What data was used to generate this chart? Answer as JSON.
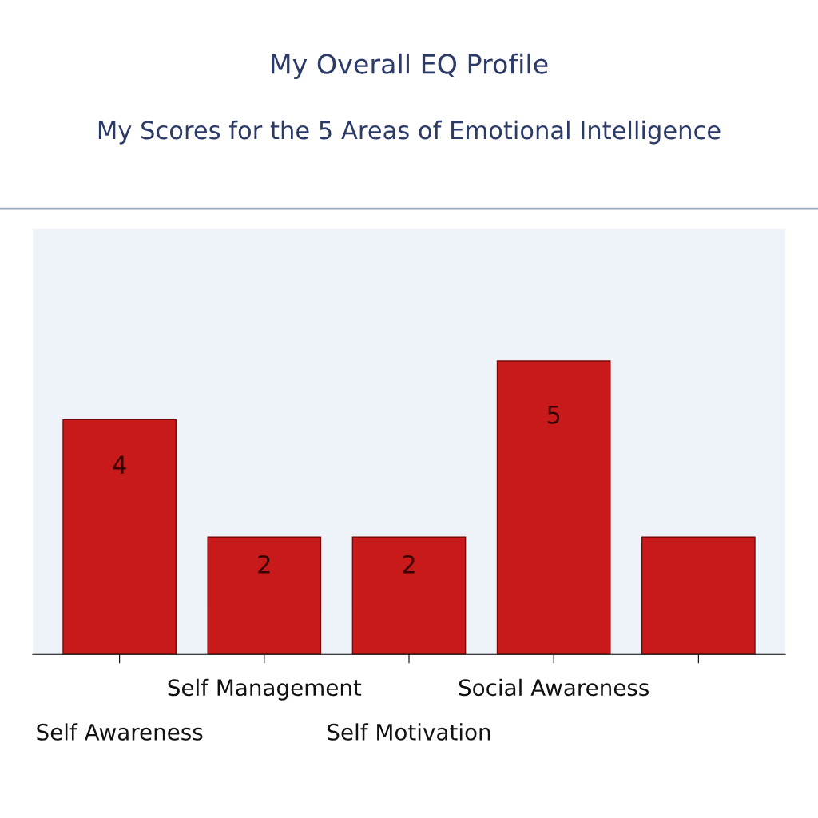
{
  "chart_data": {
    "type": "bar",
    "title": "My Overall EQ Profile",
    "subtitle": "My Scores for the 5 Areas of Emotional Intelligence",
    "categories": [
      "Self Awareness",
      "Self Management",
      "Self Motivation",
      "Social Awareness",
      null
    ],
    "values": [
      4,
      2,
      2,
      5,
      2
    ],
    "value_labels": [
      "4",
      "2",
      "2",
      "5",
      null
    ],
    "color": "#c81a1a",
    "grid": false,
    "legend": false
  }
}
